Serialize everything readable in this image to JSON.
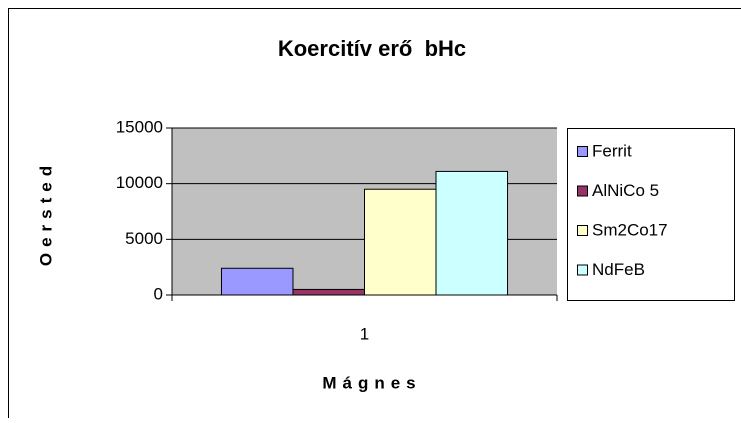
{
  "chart_data": {
    "type": "bar",
    "title": "Koercitív erő  bHc",
    "xlabel": "Mágnes",
    "ylabel": "Oersted",
    "categories": [
      "1"
    ],
    "series": [
      {
        "name": "Ferrit",
        "color": "#9999ff",
        "values": [
          2400
        ]
      },
      {
        "name": "AlNiCo 5",
        "color": "#993366",
        "values": [
          500
        ]
      },
      {
        "name": "Sm2Co17",
        "color": "#ffffcc",
        "values": [
          9500
        ]
      },
      {
        "name": "NdFeB",
        "color": "#ccffff",
        "values": [
          11100
        ]
      }
    ],
    "ylim": [
      0,
      15000
    ],
    "yticks": [
      0,
      5000,
      10000,
      15000
    ],
    "grid": true,
    "legend": "right",
    "plot_background": "#c0c0c0"
  }
}
